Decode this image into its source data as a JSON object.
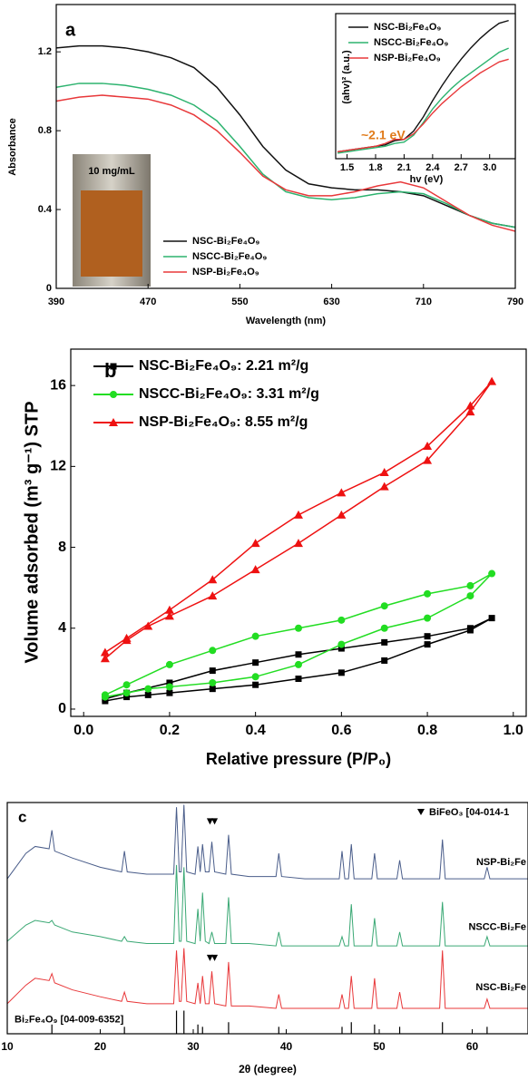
{
  "chart_data": [
    {
      "type": "line",
      "label": "a",
      "xlabel": "Wavelength (nm)",
      "ylabel": "Absorbance",
      "xlim": [
        390,
        790
      ],
      "ylim": [
        0,
        1.44
      ],
      "xticks": [
        390,
        470,
        550,
        630,
        710,
        790
      ],
      "yticks": [
        0,
        0.4,
        0.8,
        1.2
      ],
      "x": [
        390,
        410,
        430,
        450,
        470,
        490,
        510,
        530,
        550,
        570,
        590,
        610,
        630,
        650,
        670,
        690,
        710,
        730,
        750,
        770,
        790
      ],
      "series": [
        {
          "name": "NSC-Bi₂Fe₄O₉",
          "color": "#111111",
          "values": [
            1.22,
            1.23,
            1.23,
            1.22,
            1.2,
            1.17,
            1.12,
            1.02,
            0.88,
            0.72,
            0.6,
            0.53,
            0.51,
            0.5,
            0.5,
            0.49,
            0.47,
            0.42,
            0.37,
            0.33,
            0.31
          ]
        },
        {
          "name": "NSCC-Bi₂Fe₄O₉",
          "color": "#2db36f",
          "values": [
            1.02,
            1.04,
            1.04,
            1.03,
            1.01,
            0.98,
            0.93,
            0.85,
            0.72,
            0.58,
            0.49,
            0.46,
            0.45,
            0.46,
            0.48,
            0.49,
            0.48,
            0.43,
            0.37,
            0.33,
            0.31
          ]
        },
        {
          "name": "NSP-Bi₂Fe₄O₉",
          "color": "#e8383a",
          "values": [
            0.95,
            0.97,
            0.98,
            0.97,
            0.96,
            0.93,
            0.88,
            0.8,
            0.69,
            0.57,
            0.5,
            0.47,
            0.47,
            0.49,
            0.52,
            0.54,
            0.51,
            0.44,
            0.37,
            0.32,
            0.29
          ]
        }
      ],
      "photo_label": "10 mg/mL",
      "inset": {
        "type": "line",
        "xlabel": "hv (eV)",
        "ylabel": "(ahv)² (a.u.)",
        "annotation": "~2.1 eV",
        "xlim": [
          1.38,
          3.27
        ],
        "ylim": [
          0,
          1.05
        ],
        "xticks": [
          1.5,
          1.8,
          2.1,
          2.4,
          2.7,
          {
            "value": 3.0,
            "label": "3.0"
          }
        ],
        "x": [
          1.4,
          1.5,
          1.6,
          1.7,
          1.8,
          1.9,
          2.0,
          2.1,
          2.2,
          2.3,
          2.4,
          2.5,
          2.6,
          2.7,
          2.8,
          2.9,
          3.0,
          3.1,
          3.2
        ],
        "series": [
          {
            "name": "NSC-Bi₂Fe₄O₉",
            "color": "#111111",
            "values": [
              0.05,
              0.06,
              0.07,
              0.08,
              0.09,
              0.1,
              0.13,
              0.14,
              0.2,
              0.3,
              0.42,
              0.53,
              0.63,
              0.72,
              0.8,
              0.87,
              0.93,
              0.98,
              1.0
            ]
          },
          {
            "name": "NSCC-Bi₂Fe₄O₉",
            "color": "#2db36f",
            "values": [
              0.04,
              0.05,
              0.06,
              0.07,
              0.08,
              0.09,
              0.11,
              0.12,
              0.17,
              0.26,
              0.36,
              0.44,
              0.51,
              0.57,
              0.62,
              0.67,
              0.72,
              0.77,
              0.8
            ]
          },
          {
            "name": "NSP-Bi₂Fe₄O₉",
            "color": "#e8383a",
            "values": [
              0.05,
              0.06,
              0.07,
              0.08,
              0.09,
              0.11,
              0.14,
              0.14,
              0.18,
              0.25,
              0.33,
              0.4,
              0.46,
              0.52,
              0.57,
              0.62,
              0.66,
              0.7,
              0.72
            ]
          }
        ]
      }
    },
    {
      "type": "line",
      "label": "b",
      "xlabel": "Relative pressure (P/P₀)",
      "ylabel": "Volume adsorbed (m³ g⁻¹) STP",
      "xlim": [
        -0.03,
        1.03
      ],
      "ylim": [
        -0.36,
        17.8
      ],
      "xticks": [
        {
          "value": 0,
          "label": "0.0"
        },
        0.2,
        0.4,
        0.6,
        0.8,
        {
          "value": 1,
          "label": "1.0"
        }
      ],
      "yticks": [
        0,
        4,
        8,
        12,
        16
      ],
      "x": [
        0.05,
        0.1,
        0.15,
        0.2,
        0.3,
        0.4,
        0.5,
        0.6,
        0.7,
        0.8,
        0.9,
        0.95,
        0.9,
        0.8,
        0.7,
        0.6,
        0.5,
        0.4,
        0.3,
        0.2,
        0.1,
        0.05
      ],
      "series": [
        {
          "name": "NSC-Bi₂Fe₄O₉: 2.21 m²/g",
          "color": "#000000",
          "marker": "square",
          "values": [
            0.4,
            0.6,
            0.7,
            0.8,
            1.0,
            1.2,
            1.5,
            1.8,
            2.4,
            3.2,
            3.9,
            4.5,
            4.0,
            3.6,
            3.3,
            3.0,
            2.7,
            2.3,
            1.9,
            1.3,
            0.8,
            0.5
          ]
        },
        {
          "name": "NSCC-Bi₂Fe₄O₉: 3.31 m²/g",
          "color": "#22dd22",
          "marker": "circle",
          "values": [
            0.6,
            0.8,
            1.0,
            1.1,
            1.3,
            1.6,
            2.2,
            3.2,
            4.0,
            4.5,
            5.6,
            6.7,
            6.1,
            5.7,
            5.1,
            4.4,
            4.0,
            3.6,
            2.9,
            2.2,
            1.2,
            0.7
          ]
        },
        {
          "name": "NSP-Bi₂Fe₄O₉: 8.55 m²/g",
          "color": "#ee1111",
          "marker": "triangle",
          "values": [
            2.5,
            3.4,
            4.1,
            4.6,
            5.6,
            6.9,
            8.2,
            9.6,
            11.0,
            12.3,
            14.7,
            16.2,
            15.0,
            13.0,
            11.7,
            10.7,
            9.6,
            8.2,
            6.4,
            4.9,
            3.5,
            2.8
          ]
        }
      ]
    },
    {
      "type": "line",
      "label": "c",
      "xlabel": "2θ (degree)",
      "xlim": [
        10,
        66
      ],
      "ylim": [
        0,
        100
      ],
      "xticks": [
        10,
        20,
        30,
        40,
        50,
        60
      ],
      "x": [
        10,
        12,
        13,
        14.5,
        14.8,
        15.1,
        17,
        20,
        22.3,
        22.6,
        22.9,
        25,
        27.9,
        28.2,
        28.5,
        28.7,
        29.0,
        29.3,
        30.2,
        30.5,
        30.75,
        31.0,
        31.3,
        31.7,
        32.0,
        32.3,
        33.5,
        33.8,
        34.1,
        36,
        38.9,
        39.2,
        39.5,
        42,
        45.7,
        46.0,
        46.3,
        46.7,
        47.0,
        47.3,
        49.2,
        49.5,
        49.8,
        51.9,
        52.2,
        52.5,
        56.5,
        56.8,
        57.1,
        61.3,
        61.6,
        61.9,
        66
      ],
      "series": [
        {
          "name": "NSP-Bi₂Fe",
          "color": "#4a5d8a",
          "values": [
            67,
            78,
            81,
            80,
            88,
            79,
            76,
            72,
            70,
            79,
            70,
            69,
            69,
            98,
            70,
            70,
            99,
            70,
            69,
            81,
            70,
            82,
            70,
            70,
            83,
            70,
            69,
            86,
            69,
            68,
            68,
            78,
            68,
            67,
            67,
            79,
            67,
            67,
            82,
            67,
            67,
            78,
            67,
            67,
            75,
            67,
            67,
            84,
            67,
            67,
            72,
            67,
            67
          ]
        },
        {
          "name": "NSCC-Bi₂Fe",
          "color": "#3aa874",
          "values": [
            40,
            47,
            49,
            48,
            49,
            47,
            44,
            42,
            40,
            42,
            40,
            39,
            39,
            73,
            40,
            40,
            72,
            40,
            39,
            54,
            40,
            61,
            40,
            39,
            44,
            39,
            39,
            59,
            39,
            39,
            38,
            44,
            38,
            38,
            38,
            42,
            38,
            38,
            56,
            38,
            38,
            50,
            38,
            38,
            44,
            38,
            38,
            57,
            38,
            38,
            42,
            38,
            38
          ]
        },
        {
          "name": "NSC-Bi₂Fe",
          "color": "#e8383a",
          "values": [
            13,
            21,
            24,
            23,
            26,
            22,
            19,
            16,
            14,
            18,
            14,
            13,
            13,
            36,
            14,
            14,
            37,
            14,
            13,
            22,
            13,
            25,
            13,
            13,
            27,
            13,
            12,
            31,
            12,
            12,
            11,
            17,
            11,
            11,
            11,
            17,
            11,
            11,
            25,
            11,
            11,
            24,
            11,
            11,
            18,
            11,
            11,
            36,
            11,
            11,
            15,
            11,
            11
          ]
        }
      ],
      "reference": {
        "name": "Bi₂Fe₄O₉ [04-009-6352]",
        "color": "#000000",
        "x": [
          14.8,
          22.6,
          28.2,
          29.0,
          30.5,
          31.0,
          33.8,
          39.2,
          46.0,
          47.0,
          49.5,
          52.2,
          56.8,
          61.6
        ],
        "values": [
          4,
          3,
          10,
          10,
          4,
          3,
          5,
          3,
          3,
          5,
          4,
          3,
          5,
          3
        ]
      },
      "markers": {
        "name": "BiFeO₃ [04-014-1",
        "x": [
          31.8,
          32.3,
          31.8,
          32.3
        ],
        "values": [
          92,
          92,
          33,
          33
        ]
      }
    }
  ]
}
